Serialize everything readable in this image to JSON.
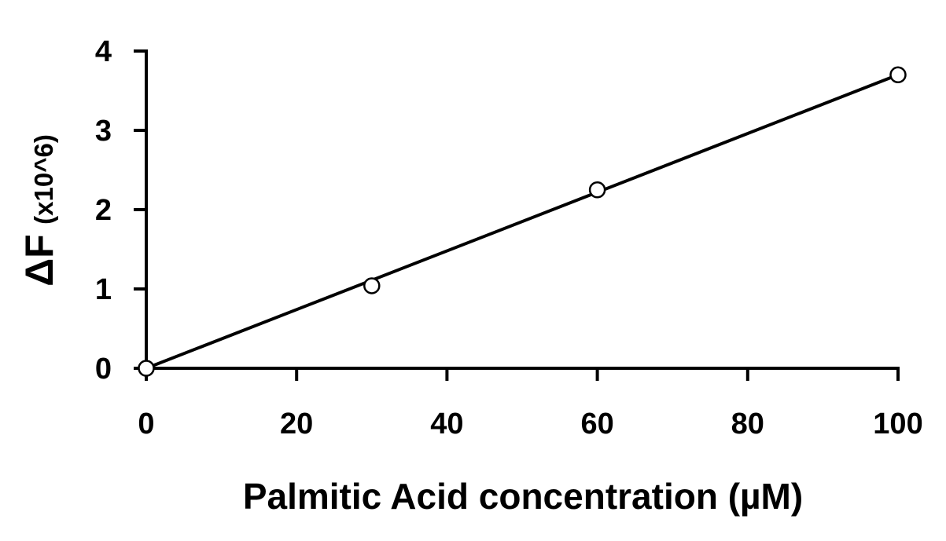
{
  "chart_data": {
    "type": "scatter",
    "title": "",
    "xlabel": "Palmitic Acid concentration (µM)",
    "ylabel_main": "ΔF",
    "ylabel_unit": "(x10^6)",
    "xlim": [
      0,
      100
    ],
    "ylim": [
      0,
      4
    ],
    "xticks": [
      "0",
      "20",
      "40",
      "60",
      "80",
      "100"
    ],
    "yticks": [
      "0",
      "1",
      "2",
      "3",
      "4"
    ],
    "grid": false,
    "legend": "none",
    "marker": "open-circle",
    "line_color": "#000000",
    "series": [
      {
        "x": [
          0,
          30,
          60,
          100
        ],
        "y": [
          0,
          1.04,
          2.25,
          3.7
        ]
      }
    ],
    "trendline": {
      "x": [
        0,
        100
      ],
      "y": [
        0,
        3.7
      ]
    }
  }
}
